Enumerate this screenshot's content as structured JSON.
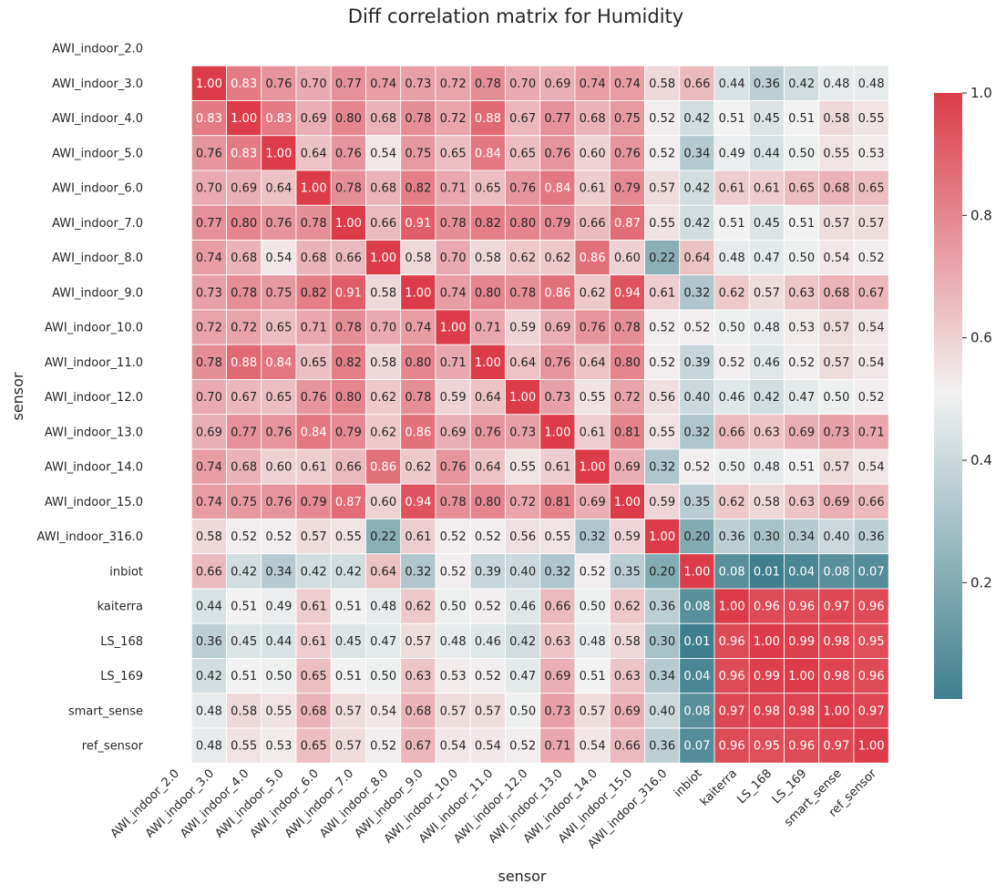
{
  "chart_data": {
    "type": "heatmap",
    "title": "Diff correlation matrix for Humidity",
    "xlabel": "sensor",
    "ylabel": "sensor",
    "labels": [
      "AWI_indoor_2.0",
      "AWI_indoor_3.0",
      "AWI_indoor_4.0",
      "AWI_indoor_5.0",
      "AWI_indoor_6.0",
      "AWI_indoor_7.0",
      "AWI_indoor_8.0",
      "AWI_indoor_9.0",
      "AWI_indoor_10.0",
      "AWI_indoor_11.0",
      "AWI_indoor_12.0",
      "AWI_indoor_13.0",
      "AWI_indoor_14.0",
      "AWI_indoor_15.0",
      "AWI_indoor_316.0",
      "inbiot",
      "kaiterra",
      "LS_168",
      "LS_169",
      "smart_sense",
      "ref_sensor"
    ],
    "matrix": [
      [
        null,
        null,
        null,
        null,
        null,
        null,
        null,
        null,
        null,
        null,
        null,
        null,
        null,
        null,
        null,
        null,
        null,
        null,
        null,
        null,
        null
      ],
      [
        null,
        1.0,
        0.83,
        0.76,
        0.7,
        0.77,
        0.74,
        0.73,
        0.72,
        0.78,
        0.7,
        0.69,
        0.74,
        0.74,
        0.58,
        0.66,
        0.44,
        0.36,
        0.42,
        0.48,
        0.48
      ],
      [
        null,
        0.83,
        1.0,
        0.83,
        0.69,
        0.8,
        0.68,
        0.78,
        0.72,
        0.88,
        0.67,
        0.77,
        0.68,
        0.75,
        0.52,
        0.42,
        0.51,
        0.45,
        0.51,
        0.58,
        0.55
      ],
      [
        null,
        0.76,
        0.83,
        1.0,
        0.64,
        0.76,
        0.54,
        0.75,
        0.65,
        0.84,
        0.65,
        0.76,
        0.6,
        0.76,
        0.52,
        0.34,
        0.49,
        0.44,
        0.5,
        0.55,
        0.53
      ],
      [
        null,
        0.7,
        0.69,
        0.64,
        1.0,
        0.78,
        0.68,
        0.82,
        0.71,
        0.65,
        0.76,
        0.84,
        0.61,
        0.79,
        0.57,
        0.42,
        0.61,
        0.61,
        0.65,
        0.68,
        0.65
      ],
      [
        null,
        0.77,
        0.8,
        0.76,
        0.78,
        1.0,
        0.66,
        0.91,
        0.78,
        0.82,
        0.8,
        0.79,
        0.66,
        0.87,
        0.55,
        0.42,
        0.51,
        0.45,
        0.51,
        0.57,
        0.57
      ],
      [
        null,
        0.74,
        0.68,
        0.54,
        0.68,
        0.66,
        1.0,
        0.58,
        0.7,
        0.58,
        0.62,
        0.62,
        0.86,
        0.6,
        0.22,
        0.64,
        0.48,
        0.47,
        0.5,
        0.54,
        0.52
      ],
      [
        null,
        0.73,
        0.78,
        0.75,
        0.82,
        0.91,
        0.58,
        1.0,
        0.74,
        0.8,
        0.78,
        0.86,
        0.62,
        0.94,
        0.61,
        0.32,
        0.62,
        0.57,
        0.63,
        0.68,
        0.67
      ],
      [
        null,
        0.72,
        0.72,
        0.65,
        0.71,
        0.78,
        0.7,
        0.74,
        1.0,
        0.71,
        0.59,
        0.69,
        0.76,
        0.78,
        0.52,
        0.52,
        0.5,
        0.48,
        0.53,
        0.57,
        0.54
      ],
      [
        null,
        0.78,
        0.88,
        0.84,
        0.65,
        0.82,
        0.58,
        0.8,
        0.71,
        1.0,
        0.64,
        0.76,
        0.64,
        0.8,
        0.52,
        0.39,
        0.52,
        0.46,
        0.52,
        0.57,
        0.54
      ],
      [
        null,
        0.7,
        0.67,
        0.65,
        0.76,
        0.8,
        0.62,
        0.78,
        0.59,
        0.64,
        1.0,
        0.73,
        0.55,
        0.72,
        0.56,
        0.4,
        0.46,
        0.42,
        0.47,
        0.5,
        0.52
      ],
      [
        null,
        0.69,
        0.77,
        0.76,
        0.84,
        0.79,
        0.62,
        0.86,
        0.69,
        0.76,
        0.73,
        1.0,
        0.61,
        0.81,
        0.55,
        0.32,
        0.66,
        0.63,
        0.69,
        0.73,
        0.71
      ],
      [
        null,
        0.74,
        0.68,
        0.6,
        0.61,
        0.66,
        0.86,
        0.62,
        0.76,
        0.64,
        0.55,
        0.61,
        1.0,
        0.69,
        0.32,
        0.52,
        0.5,
        0.48,
        0.51,
        0.57,
        0.54
      ],
      [
        null,
        0.74,
        0.75,
        0.76,
        0.79,
        0.87,
        0.6,
        0.94,
        0.78,
        0.8,
        0.72,
        0.81,
        0.69,
        1.0,
        0.59,
        0.35,
        0.62,
        0.58,
        0.63,
        0.69,
        0.66
      ],
      [
        null,
        0.58,
        0.52,
        0.52,
        0.57,
        0.55,
        0.22,
        0.61,
        0.52,
        0.52,
        0.56,
        0.55,
        0.32,
        0.59,
        1.0,
        0.2,
        0.36,
        0.3,
        0.34,
        0.4,
        0.36
      ],
      [
        null,
        0.66,
        0.42,
        0.34,
        0.42,
        0.42,
        0.64,
        0.32,
        0.52,
        0.39,
        0.4,
        0.32,
        0.52,
        0.35,
        0.2,
        1.0,
        0.08,
        0.01,
        0.04,
        0.08,
        0.07
      ],
      [
        null,
        0.44,
        0.51,
        0.49,
        0.61,
        0.51,
        0.48,
        0.62,
        0.5,
        0.52,
        0.46,
        0.66,
        0.5,
        0.62,
        0.36,
        0.08,
        1.0,
        0.96,
        0.96,
        0.97,
        0.96
      ],
      [
        null,
        0.36,
        0.45,
        0.44,
        0.61,
        0.45,
        0.47,
        0.57,
        0.48,
        0.46,
        0.42,
        0.63,
        0.48,
        0.58,
        0.3,
        0.01,
        0.96,
        1.0,
        0.99,
        0.98,
        0.95
      ],
      [
        null,
        0.42,
        0.51,
        0.5,
        0.65,
        0.51,
        0.5,
        0.63,
        0.53,
        0.52,
        0.47,
        0.69,
        0.51,
        0.63,
        0.34,
        0.04,
        0.96,
        0.99,
        1.0,
        0.98,
        0.96
      ],
      [
        null,
        0.48,
        0.58,
        0.55,
        0.68,
        0.57,
        0.54,
        0.68,
        0.57,
        0.57,
        0.5,
        0.73,
        0.57,
        0.69,
        0.4,
        0.08,
        0.97,
        0.98,
        0.98,
        1.0,
        0.97
      ],
      [
        null,
        0.48,
        0.55,
        0.53,
        0.65,
        0.57,
        0.52,
        0.67,
        0.54,
        0.54,
        0.52,
        0.71,
        0.54,
        0.66,
        0.36,
        0.07,
        0.96,
        0.95,
        0.96,
        0.97,
        1.0
      ]
    ],
    "colorbar": {
      "range": [
        0.01,
        1.0
      ],
      "ticks": [
        "0.2",
        "0.4",
        "0.6",
        "0.8",
        "1.0"
      ],
      "colormap": [
        "#3f7f8d",
        "#f2f2f2",
        "#dc3c4a"
      ]
    },
    "grid": false
  }
}
